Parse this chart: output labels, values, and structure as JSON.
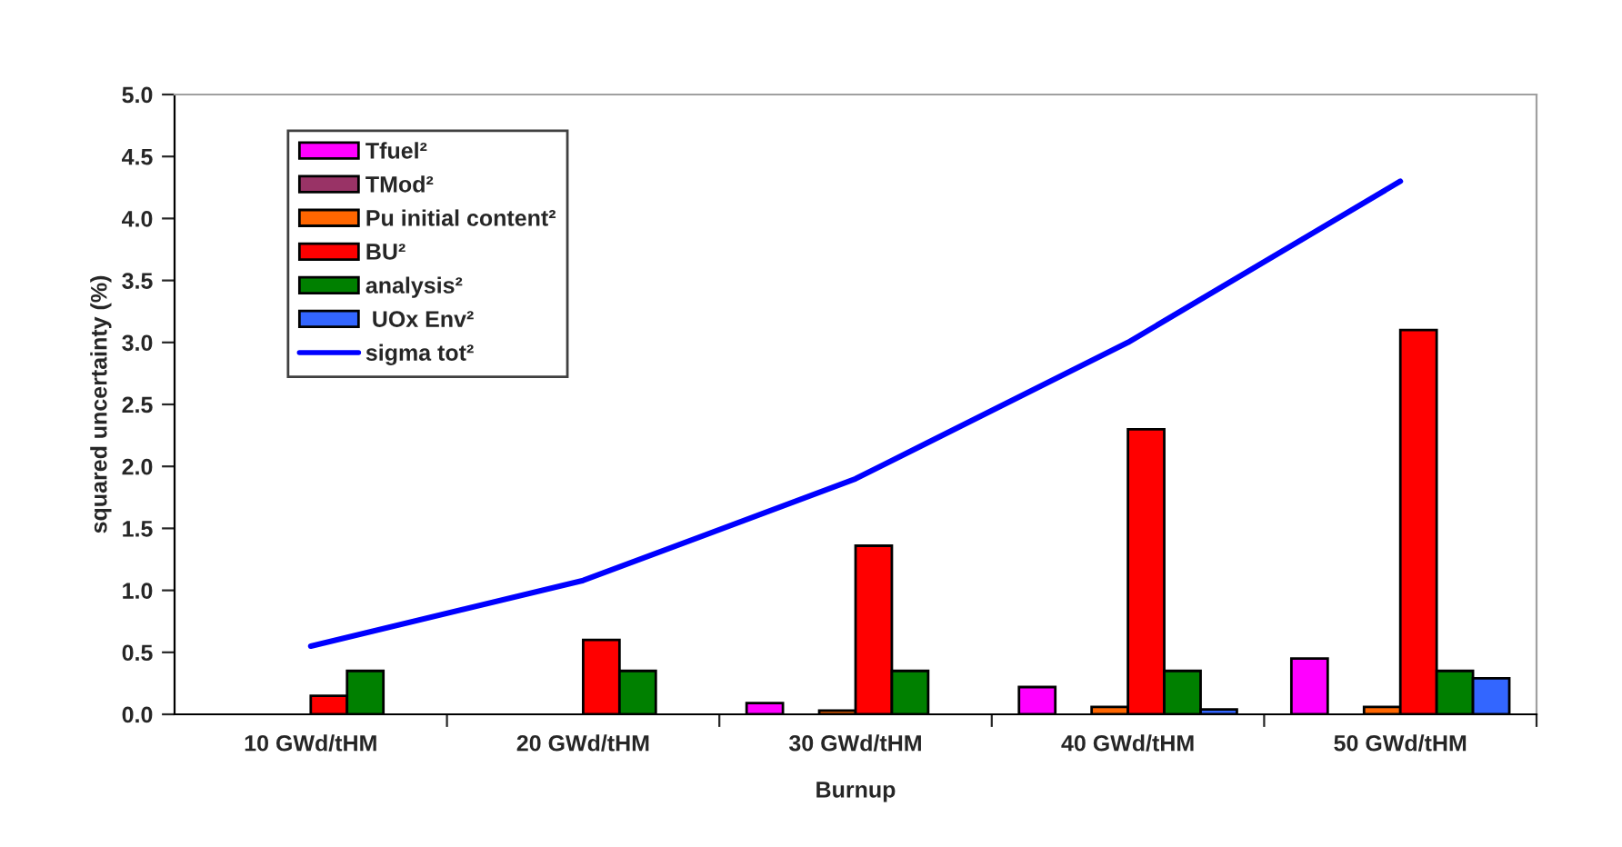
{
  "chart_data": {
    "type": "bar",
    "xlabel": "Burnup",
    "ylabel": "squared uncertainty (%)",
    "categories": [
      "10 GWd/tHM",
      "20 GWd/tHM",
      "30 GWd/tHM",
      "40 GWd/tHM",
      "50 GWd/tHM"
    ],
    "series": [
      {
        "name": "Tfuel²",
        "color": "#ff00ff",
        "values": [
          null,
          null,
          0.09,
          0.22,
          0.45
        ]
      },
      {
        "name": "TMod²",
        "color": "#993366",
        "values": [
          null,
          null,
          null,
          null,
          null
        ]
      },
      {
        "name": "Pu initial content²",
        "color": "#ff6600",
        "values": [
          null,
          null,
          0.03,
          0.06,
          0.06
        ]
      },
      {
        "name": "BU²",
        "color": "#ff0000",
        "values": [
          0.15,
          0.6,
          1.36,
          2.3,
          3.1
        ]
      },
      {
        "name": "analysis²",
        "color": "#008000",
        "values": [
          0.35,
          0.35,
          0.35,
          0.35,
          0.35
        ]
      },
      {
        "name": " UOx Env²",
        "color": "#3366ff",
        "values": [
          null,
          null,
          null,
          0.04,
          0.29
        ]
      },
      {
        "name": "sigma tot²",
        "type": "line",
        "color": "#0000ff",
        "values": [
          0.55,
          1.08,
          1.9,
          3.0,
          4.3
        ]
      }
    ],
    "ylim": [
      0,
      5
    ],
    "yticks": [
      {
        "value": 0,
        "label": "0.0"
      },
      {
        "value": 0.5,
        "label": "0.5"
      },
      {
        "value": 1,
        "label": "1.0"
      },
      {
        "value": 1.5,
        "label": "1.5"
      },
      {
        "value": 2,
        "label": "2.0"
      },
      {
        "value": 2.5,
        "label": "2.5"
      },
      {
        "value": 3,
        "label": "3.0"
      },
      {
        "value": 3.5,
        "label": "3.5"
      },
      {
        "value": 4,
        "label": "4.0"
      },
      {
        "value": 4.5,
        "label": "4.5"
      },
      {
        "value": 5,
        "label": "5.0"
      }
    ],
    "grid": false,
    "legend": "top left",
    "line_style": "solid",
    "marker": "none"
  }
}
